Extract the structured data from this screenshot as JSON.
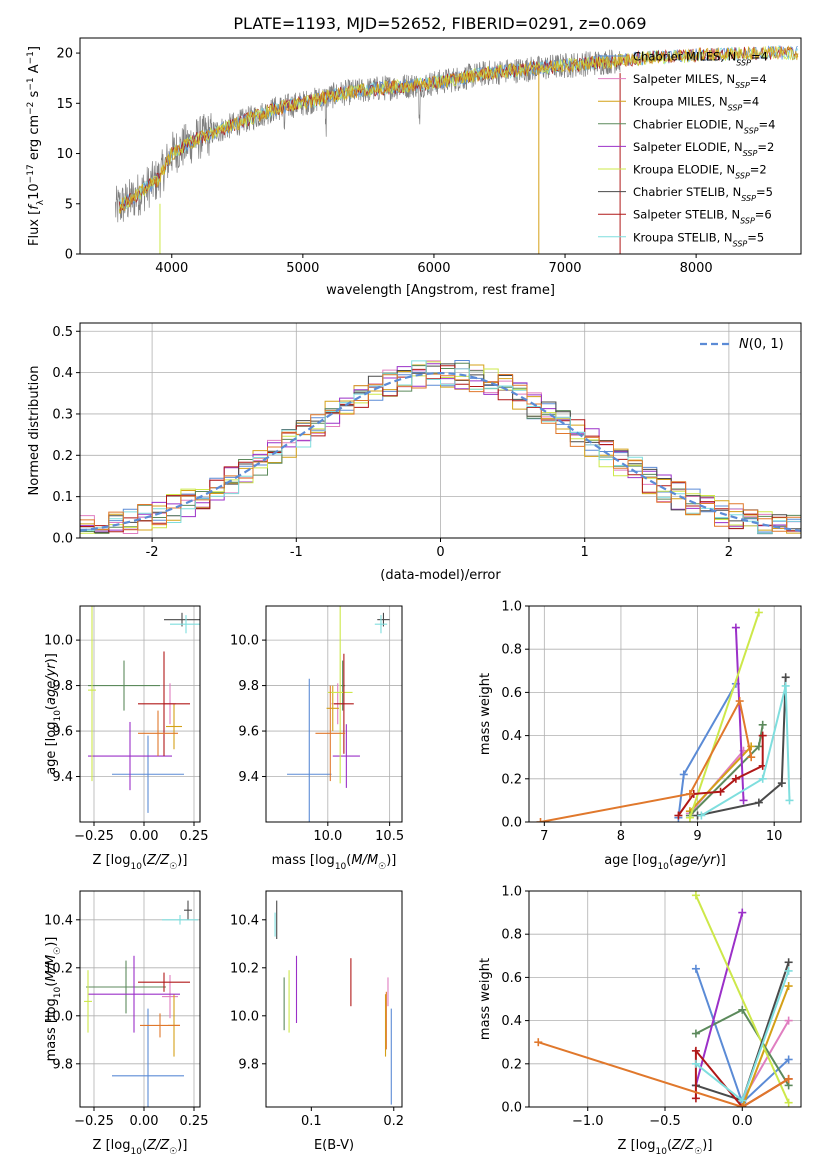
{
  "title": "PLATE=1193, MJD=52652, FIBERID=0291, z=0.069",
  "colors": {
    "Chabrier MILES": "#5b8bd6",
    "Salpeter MILES": "#e07ec0",
    "Kroupa MILES": "#d4a017",
    "Chabrier ELODIE": "#5c8a5c",
    "Salpeter ELODIE": "#9b30c8",
    "Kroupa ELODIE": "#cde84a",
    "Chabrier STELIB": "#4a4a4a",
    "Salpeter STELIB": "#b01818",
    "Kroupa STELIB": "#7fdede",
    "extra_orange": "#e0782c",
    "spectrum_gray": "#808080",
    "normal_curve": "#5b8bd6"
  },
  "chart_data": [
    {
      "id": "spectrum",
      "type": "line",
      "xlabel": "wavelength [Angstrom, rest frame]",
      "ylabel": "Flux [f_λ 10^-17 erg cm^-2 s^-1 A^-1]",
      "xlim": [
        3300,
        8800
      ],
      "ylim": [
        0,
        21.5
      ],
      "xticks": [
        4000,
        5000,
        6000,
        7000,
        8000
      ],
      "yticks": [
        0,
        5,
        10,
        15,
        20
      ],
      "grid": false,
      "legend_position": "top-right",
      "continuum": {
        "x": [
          3570,
          3700,
          3900,
          4000,
          4200,
          4500,
          4800,
          5000,
          5300,
          5600,
          6000,
          6400,
          6800,
          7200,
          7600,
          8000,
          8400,
          8800
        ],
        "y": [
          4.5,
          5.5,
          7.5,
          10.0,
          11.5,
          13.0,
          14.5,
          15.0,
          16.0,
          16.5,
          17.0,
          18.0,
          18.5,
          19.0,
          19.5,
          19.8,
          20.0,
          20.0
        ]
      },
      "series": [
        {
          "name": "Chabrier MILES, N_SSP=4",
          "label_main": "Chabrier MILES, N",
          "sub": "SSP",
          "tail": "=4"
        },
        {
          "name": "Salpeter MILES, N_SSP=4",
          "label_main": "Salpeter MILES, N",
          "sub": "SSP",
          "tail": "=4"
        },
        {
          "name": "Kroupa MILES, N_SSP=4",
          "label_main": "Kroupa MILES, N",
          "sub": "SSP",
          "tail": "=4"
        },
        {
          "name": "Chabrier ELODIE, N_SSP=4",
          "label_main": "Chabrier ELODIE, N",
          "sub": "SSP",
          "tail": "=4"
        },
        {
          "name": "Salpeter ELODIE, N_SSP=2",
          "label_main": "Salpeter ELODIE, N",
          "sub": "SSP",
          "tail": "=2"
        },
        {
          "name": "Kroupa ELODIE, N_SSP=2",
          "label_main": "Kroupa ELODIE, N",
          "sub": "SSP",
          "tail": "=2"
        },
        {
          "name": "Chabrier STELIB, N_SSP=5",
          "label_main": "Chabrier STELIB, N",
          "sub": "SSP",
          "tail": "=5"
        },
        {
          "name": "Salpeter STELIB, N_SSP=6",
          "label_main": "Salpeter STELIB, N",
          "sub": "SSP",
          "tail": "=6"
        },
        {
          "name": "Kroupa STELIB, N_SSP=5",
          "label_main": "Kroupa STELIB, N",
          "sub": "SSP",
          "tail": "=5"
        }
      ]
    },
    {
      "id": "residuals",
      "type": "histogram",
      "xlabel": "(data-model)/error",
      "ylabel": "Normed distribution",
      "xlim": [
        -2.5,
        2.5
      ],
      "ylim": [
        0,
        0.52
      ],
      "xticks": [
        -2,
        -1,
        0,
        1,
        2
      ],
      "yticks": [
        0.0,
        0.1,
        0.2,
        0.3,
        0.4,
        0.5
      ],
      "grid": true,
      "legend_position": "top-right",
      "legend_label": "N(0,1)",
      "bin_width": 0.1
    },
    {
      "id": "age-Z",
      "type": "scatter",
      "xlabel": "Z [log10(Z/Z☉)]",
      "ylabel": "age [log10(age/yr)]",
      "xlim": [
        -0.32,
        0.28
      ],
      "ylim": [
        9.2,
        10.15
      ],
      "xticks": [
        -0.25,
        0.0,
        0.25
      ],
      "xtick_labels": [
        "−0.25",
        "0.00",
        "0.25"
      ],
      "yticks": [
        9.4,
        9.6,
        9.8,
        10.0
      ],
      "grid": true,
      "points": [
        {
          "model": "Chabrier MILES",
          "x": 0.02,
          "y": 9.41,
          "xerr": 0.18,
          "yerr": 0.17
        },
        {
          "model": "Salpeter MILES",
          "x": 0.13,
          "y": 9.72,
          "xerr": 0.03,
          "yerr": 0.09
        },
        {
          "model": "Kroupa MILES",
          "x": 0.15,
          "y": 9.62,
          "xerr": 0.04,
          "yerr": 0.1
        },
        {
          "model": "Chabrier ELODIE",
          "x": -0.1,
          "y": 9.8,
          "xerr": 0.18,
          "yerr": 0.11
        },
        {
          "model": "Salpeter ELODIE",
          "x": -0.07,
          "y": 9.49,
          "xerr": 0.21,
          "yerr": 0.15
        },
        {
          "model": "Kroupa ELODIE",
          "x": -0.26,
          "y": 9.78,
          "xerr": 0.02,
          "yerr": 0.4
        },
        {
          "model": "Chabrier STELIB",
          "x": 0.19,
          "y": 10.09,
          "xerr": 0.09,
          "yerr": 0.03
        },
        {
          "model": "Salpeter STELIB",
          "x": 0.1,
          "y": 9.72,
          "xerr": 0.13,
          "yerr": 0.23
        },
        {
          "model": "Kroupa STELIB",
          "x": 0.21,
          "y": 10.07,
          "xerr": 0.08,
          "yerr": 0.04
        },
        {
          "model": "extra_orange",
          "x": 0.07,
          "y": 9.59,
          "xerr": 0.1,
          "yerr": 0.1
        }
      ]
    },
    {
      "id": "age-mass",
      "type": "scatter",
      "xlabel": "mass [log10(M/M☉)]",
      "ylabel": "",
      "xlim": [
        9.5,
        10.6
      ],
      "ylim": [
        9.2,
        10.15
      ],
      "xticks": [
        10.0,
        10.5
      ],
      "xtick_labels": [
        "10.0",
        "10.5"
      ],
      "yticks": [
        9.4,
        9.6,
        9.8,
        10.0
      ],
      "grid": true,
      "points": [
        {
          "model": "Chabrier MILES",
          "x": 9.85,
          "y": 9.41,
          "xerr": 0.18,
          "yerr": 0.42
        },
        {
          "model": "Salpeter MILES",
          "x": 10.08,
          "y": 9.72,
          "xerr": 0.05,
          "yerr": 0.09
        },
        {
          "model": "Kroupa MILES",
          "x": 10.04,
          "y": 9.7,
          "xerr": 0.05,
          "yerr": 0.1
        },
        {
          "model": "Chabrier ELODIE",
          "x": 10.12,
          "y": 9.8,
          "xerr": 0.02,
          "yerr": 0.11
        },
        {
          "model": "Salpeter ELODIE",
          "x": 10.15,
          "y": 9.49,
          "xerr": 0.11,
          "yerr": 0.14
        },
        {
          "model": "Kroupa ELODIE",
          "x": 10.1,
          "y": 9.77,
          "xerr": 0.1,
          "yerr": 0.4
        },
        {
          "model": "Chabrier STELIB",
          "x": 10.45,
          "y": 10.09,
          "xerr": 0.05,
          "yerr": 0.03
        },
        {
          "model": "Salpeter STELIB",
          "x": 10.13,
          "y": 9.72,
          "xerr": 0.08,
          "yerr": 0.22
        },
        {
          "model": "Kroupa STELIB",
          "x": 10.43,
          "y": 10.07,
          "xerr": 0.05,
          "yerr": 0.04
        },
        {
          "model": "extra_orange",
          "x": 10.02,
          "y": 9.59,
          "xerr": 0.12,
          "yerr": 0.21
        }
      ]
    },
    {
      "id": "weight-age",
      "type": "line",
      "xlabel": "age [log10(age/yr)]",
      "ylabel": "mass weight",
      "xlim": [
        6.8,
        10.35
      ],
      "ylim": [
        0,
        1
      ],
      "xticks": [
        7,
        8,
        9,
        10
      ],
      "yticks": [
        0.0,
        0.2,
        0.4,
        0.6,
        0.8,
        1.0
      ],
      "grid": true,
      "series": [
        {
          "model": "Chabrier MILES",
          "x": [
            8.75,
            8.82,
            9.5
          ],
          "y": [
            0.02,
            0.22,
            0.64
          ]
        },
        {
          "model": "Salpeter MILES",
          "x": [
            8.9,
            9.6
          ],
          "y": [
            0.04,
            0.33
          ]
        },
        {
          "model": "Kroupa MILES",
          "x": [
            8.9,
            9.7
          ],
          "y": [
            0.05,
            0.35
          ]
        },
        {
          "model": "Chabrier ELODIE",
          "x": [
            8.9,
            9.8,
            9.85
          ],
          "y": [
            0.03,
            0.35,
            0.45
          ]
        },
        {
          "model": "Salpeter ELODIE",
          "x": [
            9.5,
            9.6
          ],
          "y": [
            0.9,
            0.1
          ]
        },
        {
          "model": "Kroupa ELODIE",
          "x": [
            8.9,
            9.8
          ],
          "y": [
            0.02,
            0.97
          ]
        },
        {
          "model": "Chabrier STELIB",
          "x": [
            9.0,
            9.8,
            10.1,
            10.15
          ],
          "y": [
            0.03,
            0.09,
            0.18,
            0.67
          ]
        },
        {
          "model": "Salpeter STELIB",
          "x": [
            8.75,
            8.95,
            9.3,
            9.5,
            9.85,
            9.85
          ],
          "y": [
            0.03,
            0.13,
            0.14,
            0.2,
            0.26,
            0.4
          ]
        },
        {
          "model": "Kroupa STELIB",
          "x": [
            9.05,
            9.85,
            10.15,
            10.2
          ],
          "y": [
            0.03,
            0.2,
            0.63,
            0.1
          ]
        },
        {
          "model": "extra_orange",
          "x": [
            6.95,
            8.9,
            9.55,
            9.7
          ],
          "y": [
            0.0,
            0.13,
            0.56,
            0.3
          ]
        }
      ]
    },
    {
      "id": "mass-Z",
      "type": "scatter",
      "xlabel": "Z [log10(Z/Z☉)]",
      "ylabel": "mass [log10(M/M☉)]",
      "xlim": [
        -0.32,
        0.28
      ],
      "ylim": [
        9.62,
        10.52
      ],
      "xticks": [
        -0.25,
        0.0,
        0.25
      ],
      "xtick_labels": [
        "−0.25",
        "0.00",
        "0.25"
      ],
      "yticks": [
        9.8,
        10.0,
        10.2,
        10.4
      ],
      "grid": true,
      "points": [
        {
          "model": "Chabrier MILES",
          "x": 0.02,
          "y": 9.75,
          "xerr": 0.18,
          "yerr": 0.28
        },
        {
          "model": "Salpeter MILES",
          "x": 0.13,
          "y": 10.08,
          "xerr": 0.04,
          "yerr": 0.09
        },
        {
          "model": "Kroupa MILES",
          "x": 0.15,
          "y": 9.96,
          "xerr": 0.03,
          "yerr": 0.13
        },
        {
          "model": "Chabrier ELODIE",
          "x": -0.09,
          "y": 10.12,
          "xerr": 0.2,
          "yerr": 0.11
        },
        {
          "model": "Salpeter ELODIE",
          "x": -0.05,
          "y": 10.09,
          "xerr": 0.23,
          "yerr": 0.16
        },
        {
          "model": "Kroupa ELODIE",
          "x": -0.28,
          "y": 10.06,
          "xerr": 0.02,
          "yerr": 0.13
        },
        {
          "model": "Chabrier STELIB",
          "x": 0.22,
          "y": 10.44,
          "xerr": 0.02,
          "yerr": 0.04
        },
        {
          "model": "Salpeter STELIB",
          "x": 0.1,
          "y": 10.14,
          "xerr": 0.13,
          "yerr": 0.04
        },
        {
          "model": "Kroupa STELIB",
          "x": 0.18,
          "y": 10.4,
          "xerr": 0.09,
          "yerr": 0.02
        },
        {
          "model": "extra_orange",
          "x": 0.08,
          "y": 9.96,
          "xerr": 0.1,
          "yerr": 0.05
        }
      ]
    },
    {
      "id": "mass-EBV",
      "type": "scatter",
      "xlabel": "E(B-V)",
      "ylabel": "",
      "xlim": [
        0.045,
        0.21
      ],
      "ylim": [
        9.62,
        10.52
      ],
      "xticks": [
        0.1,
        0.2
      ],
      "xtick_labels": [
        "0.1",
        "0.2"
      ],
      "yticks": [
        9.8,
        10.0,
        10.2,
        10.4
      ],
      "grid": false,
      "points": [
        {
          "model": "Chabrier MILES",
          "x": 0.197,
          "y": 9.83,
          "xerr": 0,
          "yerr": 0.2
        },
        {
          "model": "Kroupa MILES",
          "x": 0.19,
          "y": 9.96,
          "xerr": 0,
          "yerr": 0.13
        },
        {
          "model": "extra_orange",
          "x": 0.191,
          "y": 9.98,
          "xerr": 0,
          "yerr": 0.12
        },
        {
          "model": "Salpeter MILES",
          "x": 0.193,
          "y": 10.1,
          "xerr": 0,
          "yerr": 0.06
        },
        {
          "model": "Salpeter STELIB",
          "x": 0.148,
          "y": 10.14,
          "xerr": 0,
          "yerr": 0.1
        },
        {
          "model": "Salpeter ELODIE",
          "x": 0.082,
          "y": 10.11,
          "xerr": 0,
          "yerr": 0.14
        },
        {
          "model": "Kroupa ELODIE",
          "x": 0.073,
          "y": 10.06,
          "xerr": 0,
          "yerr": 0.13
        },
        {
          "model": "Chabrier ELODIE",
          "x": 0.067,
          "y": 10.05,
          "xerr": 0,
          "yerr": 0.11
        },
        {
          "model": "Chabrier STELIB",
          "x": 0.058,
          "y": 10.4,
          "xerr": 0,
          "yerr": 0.08
        },
        {
          "model": "Kroupa STELIB",
          "x": 0.056,
          "y": 10.38,
          "xerr": 0,
          "yerr": 0.05
        }
      ]
    },
    {
      "id": "weight-Z",
      "type": "line",
      "xlabel": "Z [log10(Z/Z☉)]",
      "ylabel": "mass weight",
      "xlim": [
        -1.38,
        0.38
      ],
      "ylim": [
        0,
        1
      ],
      "xticks": [
        -1.0,
        -0.5,
        0.0
      ],
      "xtick_labels": [
        "−1.0",
        "−0.5",
        "0.0"
      ],
      "yticks": [
        0.0,
        0.2,
        0.4,
        0.6,
        0.8,
        1.0
      ],
      "grid": true,
      "series": [
        {
          "model": "Chabrier MILES",
          "x": [
            -0.3,
            0.0,
            0.3
          ],
          "y": [
            0.64,
            0.02,
            0.22
          ]
        },
        {
          "model": "Salpeter MILES",
          "x": [
            0.0,
            0.3
          ],
          "y": [
            0.03,
            0.4
          ]
        },
        {
          "model": "Kroupa MILES",
          "x": [
            0.0,
            0.3
          ],
          "y": [
            0.0,
            0.56
          ]
        },
        {
          "model": "Chabrier ELODIE",
          "x": [
            -0.3,
            0.0,
            0.3
          ],
          "y": [
            0.34,
            0.45,
            0.1
          ]
        },
        {
          "model": "Salpeter ELODIE",
          "x": [
            -0.3,
            0.0
          ],
          "y": [
            0.1,
            0.9
          ]
        },
        {
          "model": "Kroupa ELODIE",
          "x": [
            -0.3,
            0.3
          ],
          "y": [
            0.98,
            0.02
          ]
        },
        {
          "model": "Chabrier STELIB",
          "x": [
            -0.3,
            0.0,
            0.3
          ],
          "y": [
            0.1,
            0.03,
            0.67
          ]
        },
        {
          "model": "Salpeter STELIB",
          "x": [
            -0.3,
            -0.3,
            0.0,
            0.3
          ],
          "y": [
            0.04,
            0.26,
            0.0,
            0.13
          ]
        },
        {
          "model": "Kroupa STELIB",
          "x": [
            -0.3,
            0.0,
            0.3
          ],
          "y": [
            0.2,
            0.03,
            0.63
          ]
        },
        {
          "model": "extra_orange",
          "x": [
            -1.32,
            0.0,
            0.3
          ],
          "y": [
            0.3,
            0.0,
            0.13
          ]
        }
      ]
    }
  ]
}
